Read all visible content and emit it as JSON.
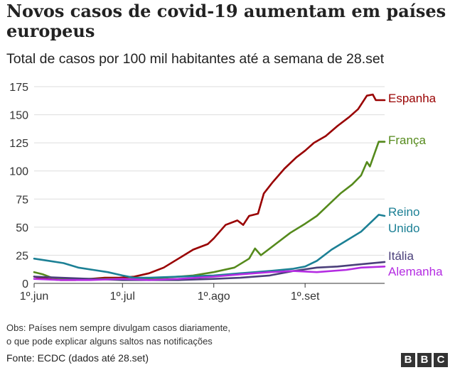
{
  "header": {
    "title": "Novos casos de covid-19 aumentam em países europeus",
    "subtitle": "Total de casos por 100 mil habitantes até a semana de 28.set"
  },
  "footer": {
    "note_line1": "Obs: Países nem sempre divulgam casos diariamente,",
    "note_line2": "o que pode explicar alguns saltos nas notificações",
    "source": "Fonte: ECDC (dados até 28.set)",
    "logo": [
      "B",
      "B",
      "C"
    ]
  },
  "chart_data": {
    "type": "line",
    "title": "Novos casos de covid-19 aumentam em países europeus",
    "subtitle": "Total de casos por 100 mil habitantes até a semana de 28.set",
    "xlabel": "",
    "ylabel": "",
    "x_range": [
      "2020-06-01",
      "2020-09-28"
    ],
    "ylim": [
      0,
      175
    ],
    "y_ticks": [
      0,
      25,
      50,
      75,
      100,
      125,
      150,
      175
    ],
    "x_ticks": [
      {
        "date": "2020-06-01",
        "label": "1º.jun"
      },
      {
        "date": "2020-07-01",
        "label": "1º.jul"
      },
      {
        "date": "2020-08-01",
        "label": "1º.ago"
      },
      {
        "date": "2020-09-01",
        "label": "1º.set"
      }
    ],
    "grid": true,
    "legend": "direct labels at right end of lines",
    "series": [
      {
        "name": "Espanha",
        "labels": [
          "Espanha"
        ],
        "color": "#990000",
        "points": [
          [
            "2020-06-01",
            6
          ],
          [
            "2020-06-05",
            4
          ],
          [
            "2020-06-10",
            3
          ],
          [
            "2020-06-15",
            3
          ],
          [
            "2020-06-20",
            4
          ],
          [
            "2020-06-25",
            5
          ],
          [
            "2020-06-30",
            5
          ],
          [
            "2020-07-05",
            6
          ],
          [
            "2020-07-10",
            9
          ],
          [
            "2020-07-15",
            14
          ],
          [
            "2020-07-20",
            22
          ],
          [
            "2020-07-25",
            30
          ],
          [
            "2020-07-30",
            35
          ],
          [
            "2020-08-01",
            40
          ],
          [
            "2020-08-05",
            52
          ],
          [
            "2020-08-09",
            56
          ],
          [
            "2020-08-11",
            52
          ],
          [
            "2020-08-13",
            60
          ],
          [
            "2020-08-16",
            62
          ],
          [
            "2020-08-18",
            80
          ],
          [
            "2020-08-21",
            90
          ],
          [
            "2020-08-25",
            102
          ],
          [
            "2020-08-29",
            112
          ],
          [
            "2020-09-01",
            118
          ],
          [
            "2020-09-04",
            125
          ],
          [
            "2020-09-08",
            131
          ],
          [
            "2020-09-12",
            140
          ],
          [
            "2020-09-16",
            148
          ],
          [
            "2020-09-19",
            155
          ],
          [
            "2020-09-22",
            167
          ],
          [
            "2020-09-24",
            168
          ],
          [
            "2020-09-25",
            163
          ],
          [
            "2020-09-28",
            163
          ]
        ]
      },
      {
        "name": "França",
        "labels": [
          "França"
        ],
        "color": "#558a1c",
        "points": [
          [
            "2020-06-01",
            10
          ],
          [
            "2020-06-04",
            8
          ],
          [
            "2020-06-07",
            5
          ],
          [
            "2020-06-15",
            4
          ],
          [
            "2020-06-25",
            4
          ],
          [
            "2020-07-05",
            4
          ],
          [
            "2020-07-15",
            5
          ],
          [
            "2020-07-25",
            7
          ],
          [
            "2020-08-01",
            10
          ],
          [
            "2020-08-08",
            14
          ],
          [
            "2020-08-13",
            22
          ],
          [
            "2020-08-15",
            31
          ],
          [
            "2020-08-17",
            25
          ],
          [
            "2020-08-22",
            35
          ],
          [
            "2020-08-27",
            45
          ],
          [
            "2020-09-01",
            53
          ],
          [
            "2020-09-05",
            60
          ],
          [
            "2020-09-09",
            70
          ],
          [
            "2020-09-13",
            80
          ],
          [
            "2020-09-17",
            88
          ],
          [
            "2020-09-20",
            96
          ],
          [
            "2020-09-22",
            108
          ],
          [
            "2020-09-23",
            104
          ],
          [
            "2020-09-26",
            126
          ],
          [
            "2020-09-28",
            126
          ]
        ]
      },
      {
        "name": "Reino Unido",
        "labels": [
          "Reino",
          "Unido"
        ],
        "color": "#1c8095",
        "points": [
          [
            "2020-06-01",
            22
          ],
          [
            "2020-06-06",
            20
          ],
          [
            "2020-06-11",
            18
          ],
          [
            "2020-06-16",
            14
          ],
          [
            "2020-06-21",
            12
          ],
          [
            "2020-06-26",
            10
          ],
          [
            "2020-07-01",
            7
          ],
          [
            "2020-07-05",
            5
          ],
          [
            "2020-07-10",
            5
          ],
          [
            "2020-07-20",
            6
          ],
          [
            "2020-08-01",
            7
          ],
          [
            "2020-08-10",
            9
          ],
          [
            "2020-08-20",
            11
          ],
          [
            "2020-08-28",
            13
          ],
          [
            "2020-09-01",
            15
          ],
          [
            "2020-09-05",
            20
          ],
          [
            "2020-09-10",
            30
          ],
          [
            "2020-09-15",
            38
          ],
          [
            "2020-09-20",
            46
          ],
          [
            "2020-09-24",
            56
          ],
          [
            "2020-09-26",
            61
          ],
          [
            "2020-09-28",
            60
          ]
        ]
      },
      {
        "name": "Itália",
        "labels": [
          "Itália"
        ],
        "color": "#4a3f7a",
        "points": [
          [
            "2020-06-01",
            6
          ],
          [
            "2020-06-10",
            5
          ],
          [
            "2020-06-20",
            4
          ],
          [
            "2020-07-01",
            3
          ],
          [
            "2020-07-10",
            3
          ],
          [
            "2020-07-20",
            3
          ],
          [
            "2020-08-01",
            4
          ],
          [
            "2020-08-10",
            5
          ],
          [
            "2020-08-20",
            7
          ],
          [
            "2020-08-28",
            11
          ],
          [
            "2020-09-05",
            14
          ],
          [
            "2020-09-12",
            15
          ],
          [
            "2020-09-20",
            17
          ],
          [
            "2020-09-28",
            19
          ]
        ]
      },
      {
        "name": "Alemanha",
        "labels": [
          "Alemanha"
        ],
        "color": "#b42ce2",
        "points": [
          [
            "2020-06-01",
            4
          ],
          [
            "2020-06-10",
            3
          ],
          [
            "2020-06-20",
            3
          ],
          [
            "2020-07-01",
            4
          ],
          [
            "2020-07-10",
            3
          ],
          [
            "2020-07-20",
            4
          ],
          [
            "2020-08-01",
            6
          ],
          [
            "2020-08-10",
            8
          ],
          [
            "2020-08-20",
            10
          ],
          [
            "2020-08-28",
            11
          ],
          [
            "2020-09-05",
            10
          ],
          [
            "2020-09-15",
            12
          ],
          [
            "2020-09-20",
            14
          ],
          [
            "2020-09-28",
            15
          ]
        ]
      }
    ]
  }
}
